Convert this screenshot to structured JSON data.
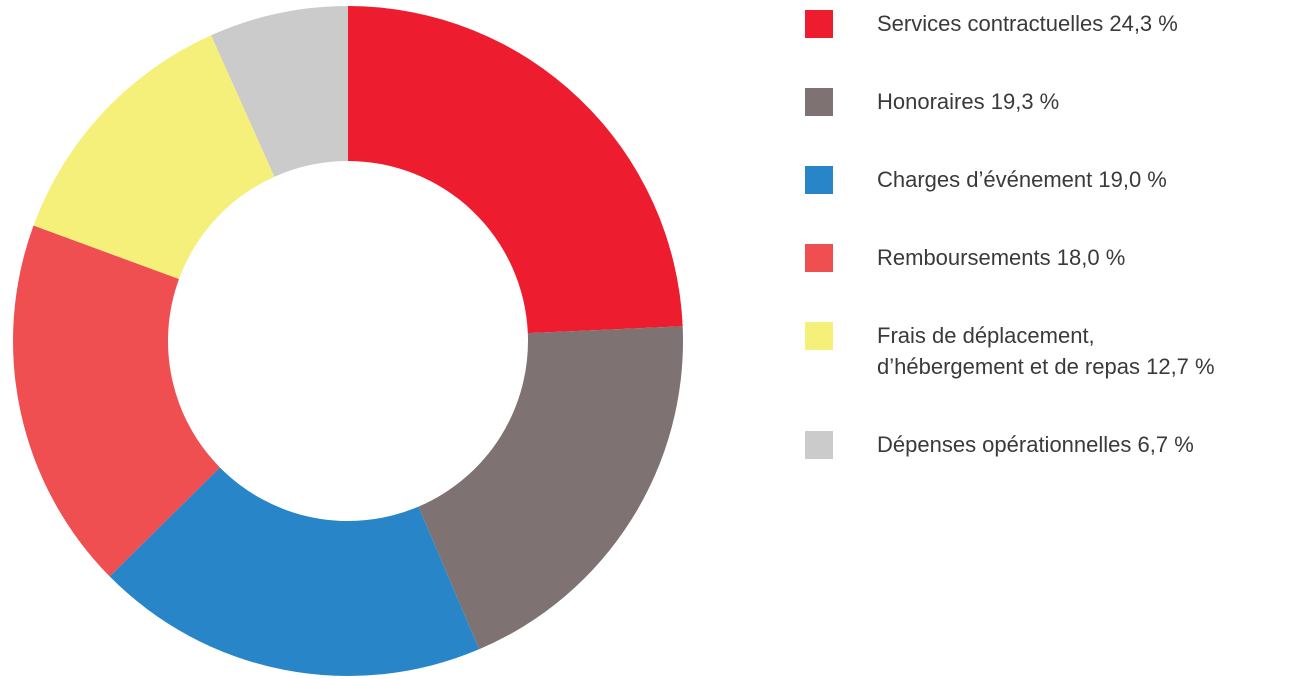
{
  "chart_data": {
    "type": "donut",
    "categories": [
      "Services contractuelles",
      "Honoraires",
      "Charges d’événement",
      "Remboursements",
      "Frais de déplacement, d’hébergement et de repas",
      "Dépenses opérationnelles"
    ],
    "values": [
      24.3,
      19.3,
      19.0,
      18.0,
      12.7,
      6.7
    ],
    "value_labels": [
      "24,3 %",
      "19,3 %",
      "19,0 %",
      "18,0 %",
      "12,7 %",
      "6,7 %"
    ],
    "colors": [
      "#ed1c2e",
      "#7f7272",
      "#2886c8",
      "#ef4f51",
      "#f5f07a",
      "#cccbcb"
    ],
    "legend": "right"
  }
}
